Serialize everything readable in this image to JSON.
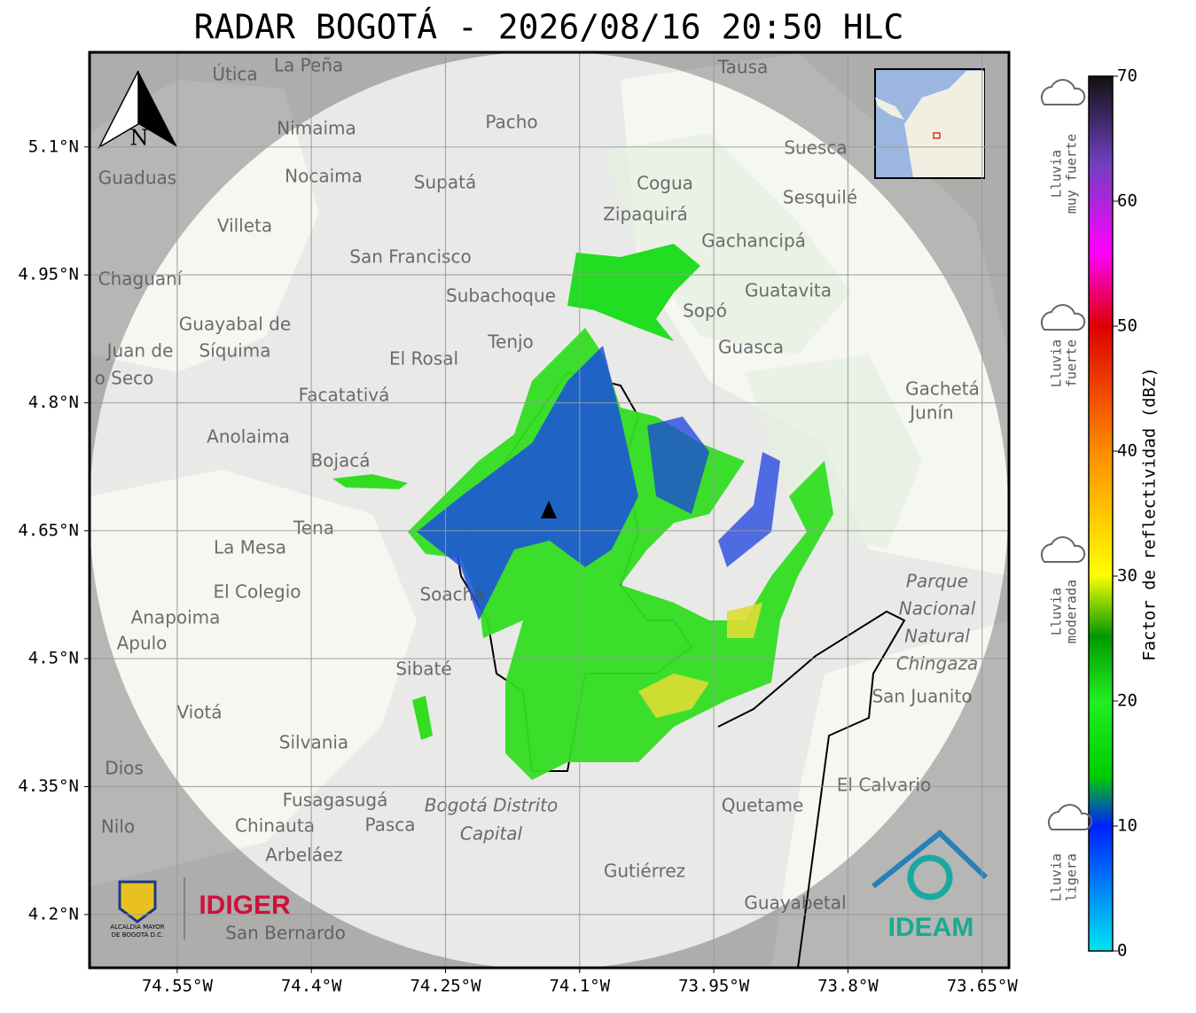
{
  "chart_data": {
    "type": "map",
    "title": "RADAR BOGOTÁ - 2026/08/16 20:50 HLC",
    "xlim": [
      -74.648,
      -73.62
    ],
    "ylim": [
      4.1375,
      5.211
    ],
    "xticks": [
      {
        "value": -74.55,
        "label": "74.55°W"
      },
      {
        "value": -74.4,
        "label": "74.4°W"
      },
      {
        "value": -74.25,
        "label": "74.25°W"
      },
      {
        "value": -74.1,
        "label": "74.1°W"
      },
      {
        "value": -73.95,
        "label": "73.95°W"
      },
      {
        "value": -73.8,
        "label": "73.8°W"
      },
      {
        "value": -73.65,
        "label": "73.65°W"
      }
    ],
    "yticks": [
      {
        "value": 4.2,
        "label": "4.2°N"
      },
      {
        "value": 4.35,
        "label": "4.35°N"
      },
      {
        "value": 4.5,
        "label": "4.5°N"
      },
      {
        "value": 4.65,
        "label": "4.65°N"
      },
      {
        "value": 4.8,
        "label": "4.8°N"
      },
      {
        "value": 4.95,
        "label": "4.95°N"
      },
      {
        "value": 5.1,
        "label": "5.1°N"
      }
    ],
    "grid": true,
    "colorbar": {
      "label": "Factor de reflectividad (dBZ)",
      "lim": [
        0,
        70
      ],
      "ticks": [
        0,
        10,
        20,
        30,
        40,
        50,
        60,
        70
      ]
    },
    "rain_labels": [
      [
        "Lluvia",
        "muy fuerte"
      ],
      [
        "Lluvia",
        "fuerte"
      ],
      [
        "Lluvia",
        "moderada"
      ],
      [
        "Lluvia",
        "ligera"
      ]
    ],
    "north": "N",
    "logos": {
      "alcaldia": [
        "ALCALDÍA MAYOR",
        "DE BOGOTÁ D.C."
      ],
      "idiger": "IDIGER",
      "ideam": "IDEAM"
    },
    "places": [
      "Útica",
      "La Peña",
      "Tausa",
      "Pacho",
      "Nimaima",
      "Suesca",
      "Guaduas",
      "Nocaima",
      "Supatá",
      "Cogua",
      "Sesquilé",
      "Zipaquirá",
      "Villeta",
      "Gachancipá",
      "San Francisco",
      "Chaguaní",
      "Guatavita",
      "Subachoque",
      "Sopó",
      "Guayabal de",
      "Síquima",
      "Tenjo",
      "Guasca",
      "Juan de",
      "o Seco",
      "El Rosal",
      "Gachetá",
      "Facatativá",
      "Junín",
      "Anolaima",
      "Bojacá",
      "Tena",
      "La Mesa",
      "Soacha",
      "El Colegio",
      "Anapoima",
      "Apulo",
      "Sibaté",
      "San Juanito",
      "Viotá",
      "Silvania",
      "Dios",
      "El Calvario",
      "Fusagasugá",
      "Quetame",
      "Nilo",
      "Chinauta",
      "Pasca",
      "Arbeláez",
      "Gutiérrez",
      "Guayabetal",
      "San Bernardo"
    ],
    "park": [
      "Parque",
      "Nacional",
      "Natural",
      "Chingaza"
    ],
    "district": [
      "Bogotá Distrito",
      "Capital"
    ]
  }
}
